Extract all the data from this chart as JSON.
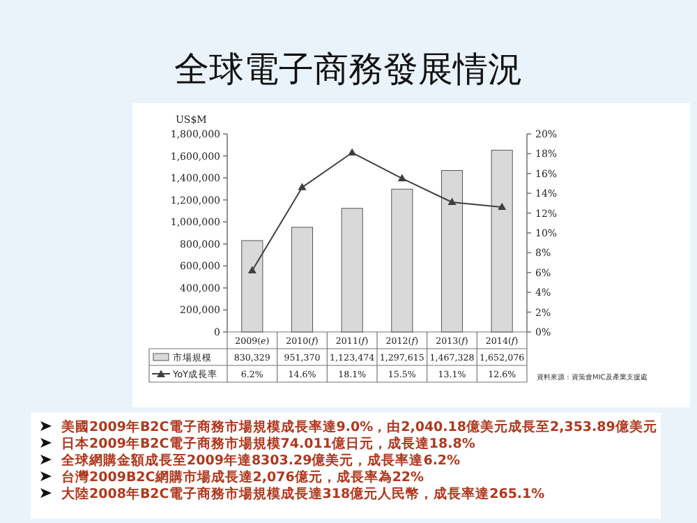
{
  "chart_data": {
    "type": "bar",
    "title": "全球電子商務發展情況",
    "ylabel": "US$M",
    "categories": [
      "2009(*e*)",
      "2010(*f*)",
      "2011(*f*)",
      "2012(*f*)",
      "2013(*f*)",
      "2014(*f*)"
    ],
    "series": [
      {
        "name": "市場規模",
        "color": "#d9d9d9",
        "values": [
          830329,
          951370,
          1123474,
          1297615,
          1467328,
          1652076
        ],
        "value_labels": [
          "830,329",
          "951,370",
          "1,123,474",
          "1,297,615",
          "1,467,328",
          "1,652,076"
        ]
      },
      {
        "name": "YoY成長率",
        "type": "line",
        "axis": "y2",
        "color": "#404040",
        "marker": "triangle",
        "values": [
          6.2,
          14.6,
          18.1,
          15.5,
          13.1,
          12.6
        ],
        "value_labels": [
          "6.2%",
          "14.6%",
          "18.1%",
          "15.5%",
          "13.1%",
          "12.6%"
        ]
      }
    ],
    "ylim": [
      0,
      1800000
    ],
    "yticks": [
      0,
      {
        "value": 200000,
        "label": "200,000"
      },
      {
        "value": 400000,
        "label": "400,000"
      },
      {
        "value": 600000,
        "label": "600,000"
      },
      {
        "value": 800000,
        "label": "800,000"
      },
      {
        "value": 1000000,
        "label": "1,000,000"
      },
      {
        "value": 1200000,
        "label": "1,200,000"
      },
      {
        "value": 1400000,
        "label": "1,400,000"
      },
      {
        "value": 1600000,
        "label": "1,600,000"
      },
      {
        "value": 1800000,
        "label": "1,800,000"
      }
    ],
    "y2lim": [
      0,
      20
    ],
    "y2ticks": [
      {
        "value": 0,
        "label": "0%"
      },
      {
        "value": 2,
        "label": "2%"
      },
      {
        "value": 4,
        "label": "4%"
      },
      {
        "value": 6,
        "label": "6%"
      },
      {
        "value": 8,
        "label": "8%"
      },
      {
        "value": 10,
        "label": "10%"
      },
      {
        "value": 12,
        "label": "12%"
      },
      {
        "value": 14,
        "label": "14%"
      },
      {
        "value": 16,
        "label": "16%"
      },
      {
        "value": 18,
        "label": "18%"
      },
      {
        "value": 20,
        "label": "20%"
      }
    ],
    "legend": "bottom",
    "annotations": [
      "資料來源：資策會MIC及產業支援處",
      "美國2009年B2C電子商務市場規模成長率達9.0%，由2,040.18億美元成長至2,353.89億美元",
      "日本2009年B2C電子商務市場規模74.011億日元，成長達18.8%",
      "全球網購金額成長至2009年達8303.29億美元，成長率達6.2%",
      "台灣2009B2C網購市場成長達2,076億元，成長率為22%",
      "大陸2008年B2C電子商務市場規模成長達318億元人民幣，成長率達265.1%"
    ]
  }
}
